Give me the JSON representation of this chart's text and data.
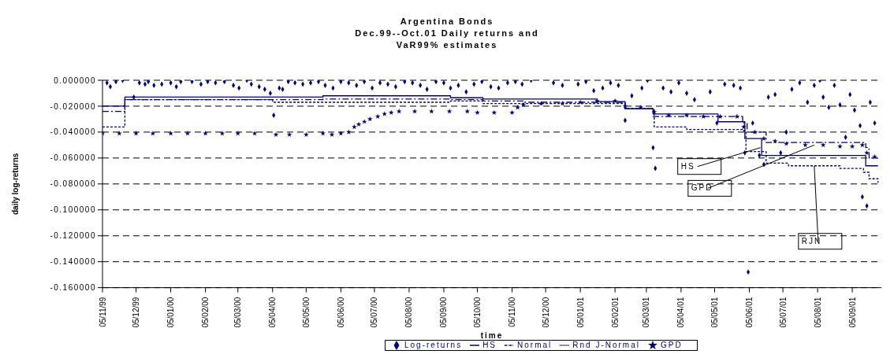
{
  "chart_data": {
    "type": "line",
    "title": "Argentina Bonds",
    "subtitle": "Dec.99--Oct.01 Daily returns and VaR99% estimates",
    "xlabel": "time",
    "ylabel": "daily log-returns",
    "xlim": [
      "1999-11-05",
      "2001-10-01"
    ],
    "xticks": [
      {
        "value": "1999-11-05",
        "label": "05/11/99"
      },
      {
        "value": "1999-12-05",
        "label": "05/12/99"
      },
      {
        "value": "2000-01-05",
        "label": "05/01/00"
      },
      {
        "value": "2000-02-05",
        "label": "05/02/00"
      },
      {
        "value": "2000-03-05",
        "label": "05/03/00"
      },
      {
        "value": "2000-04-05",
        "label": "05/04/00"
      },
      {
        "value": "2000-05-05",
        "label": "05/05/00"
      },
      {
        "value": "2000-06-05",
        "label": "05/06/00"
      },
      {
        "value": "2000-07-05",
        "label": "05/07/00"
      },
      {
        "value": "2000-08-05",
        "label": "05/08/00"
      },
      {
        "value": "2000-09-05",
        "label": "05/09/00"
      },
      {
        "value": "2000-10-05",
        "label": "05/10/00"
      },
      {
        "value": "2000-11-05",
        "label": "05/11/00"
      },
      {
        "value": "2000-12-05",
        "label": "05/12/00"
      },
      {
        "value": "2001-01-05",
        "label": "05/01/01"
      },
      {
        "value": "2001-02-05",
        "label": "05/02/01"
      },
      {
        "value": "2001-03-05",
        "label": "05/03/01"
      },
      {
        "value": "2001-04-05",
        "label": "05/04/01"
      },
      {
        "value": "2001-05-05",
        "label": "05/05/01"
      },
      {
        "value": "2001-06-05",
        "label": "05/06/01"
      },
      {
        "value": "2001-07-05",
        "label": "05/07/01"
      },
      {
        "value": "2001-08-05",
        "label": "05/08/01"
      },
      {
        "value": "2001-09-05",
        "label": "05/09/01"
      }
    ],
    "ylim": [
      -0.16,
      0
    ],
    "yticks": [
      {
        "value": 0,
        "label": "0.000000"
      },
      {
        "value": -0.02,
        "label": "-0.020000"
      },
      {
        "value": -0.04,
        "label": "-0.040000"
      },
      {
        "value": -0.06,
        "label": "-0.060000"
      },
      {
        "value": -0.08,
        "label": "-0.080000"
      },
      {
        "value": -0.1,
        "label": "-0.100000"
      },
      {
        "value": -0.12,
        "label": "-0.120000"
      },
      {
        "value": -0.14,
        "label": "-0.140000"
      },
      {
        "value": -0.16,
        "label": "-0.160000"
      }
    ],
    "grid": "y",
    "legend": "bottom",
    "series": [
      {
        "name": "Log-returns",
        "type": "scatter",
        "marker": "diamond",
        "color": "#000080",
        "x": [
          "1999-11-09",
          "1999-11-12",
          "1999-11-17",
          "1999-11-23",
          "1999-12-03",
          "1999-12-08",
          "1999-12-13",
          "1999-12-16",
          "1999-12-21",
          "1999-12-28",
          "2000-01-05",
          "2000-01-10",
          "2000-01-14",
          "2000-01-24",
          "2000-02-01",
          "2000-02-07",
          "2000-02-14",
          "2000-02-22",
          "2000-03-01",
          "2000-03-06",
          "2000-03-13",
          "2000-03-17",
          "2000-03-24",
          "2000-03-29",
          "2000-04-03",
          "2000-04-06",
          "2000-04-11",
          "2000-04-14",
          "2000-04-19",
          "2000-04-25",
          "2000-05-02",
          "2000-05-09",
          "2000-05-16",
          "2000-05-22",
          "2000-05-29",
          "2000-06-05",
          "2000-06-12",
          "2000-06-19",
          "2000-06-26",
          "2000-07-03",
          "2000-07-10",
          "2000-07-17",
          "2000-07-24",
          "2000-08-01",
          "2000-08-08",
          "2000-08-15",
          "2000-08-21",
          "2000-08-29",
          "2000-09-05",
          "2000-09-11",
          "2000-09-18",
          "2000-09-25",
          "2000-10-02",
          "2000-10-09",
          "2000-10-17",
          "2000-10-24",
          "2000-11-01",
          "2000-11-08",
          "2000-11-14",
          "2000-11-22",
          "2000-12-12",
          "2000-12-20",
          "2001-01-03",
          "2001-01-10",
          "2001-01-17",
          "2001-01-25",
          "2001-02-01",
          "2001-02-08",
          "2001-02-14",
          "2001-02-20",
          "2001-03-01",
          "2001-03-06",
          "2001-03-11",
          "2001-03-13",
          "2001-03-20",
          "2001-03-27",
          "2001-04-03",
          "2001-04-10",
          "2001-04-17",
          "2001-05-01",
          "2001-05-07",
          "2001-05-14",
          "2001-05-22",
          "2001-05-28",
          "2001-06-01",
          "2001-06-04",
          "2001-06-08",
          "2001-06-14",
          "2001-06-18",
          "2001-06-22",
          "2001-06-28",
          "2001-07-03",
          "2001-07-08",
          "2001-07-13",
          "2001-07-20",
          "2001-07-27",
          "2001-08-02",
          "2001-08-07",
          "2001-08-10",
          "2001-08-15",
          "2001-08-20",
          "2001-08-25",
          "2001-08-30",
          "2001-09-03",
          "2001-09-07",
          "2001-09-12",
          "2001-09-14",
          "2001-09-18",
          "2001-09-21",
          "2001-09-25"
        ],
        "values": [
          -0.002,
          -0.005,
          -0.001,
          0,
          -0.013,
          -0.002,
          -0.003,
          -0.001,
          -0.004,
          -0.003,
          -0.002,
          -0.005,
          -0.001,
          -0.001,
          -0.003,
          -0.001,
          -0.002,
          -0.001,
          -0.004,
          -0.006,
          0,
          -0.003,
          -0.005,
          -0.007,
          -0.01,
          -0.027,
          -0.006,
          -0.007,
          -0.001,
          -0.002,
          -0.003,
          -0.002,
          -0.001,
          -0.004,
          -0.006,
          -0.001,
          -0.002,
          -0.004,
          -0.001,
          -0.006,
          -0.002,
          -0.003,
          -0.005,
          -0.001,
          -0.002,
          -0.004,
          -0.007,
          -0.001,
          -0.002,
          -0.006,
          -0.004,
          -0.009,
          -0.003,
          -0.001,
          -0.005,
          -0.006,
          -0.002,
          -0.001,
          -0.003,
          0,
          -0.002,
          -0.004,
          -0.003,
          -0.001,
          -0.008,
          -0.006,
          -0.002,
          -0.004,
          -0.031,
          -0.012,
          -0.006,
          0,
          -0.052,
          -0.068,
          -0.006,
          -0.009,
          -0.002,
          -0.01,
          -0.015,
          -0.009,
          -0.033,
          -0.003,
          -0.004,
          -0.006,
          -0.056,
          -0.148,
          -0.033,
          -0.058,
          -0.065,
          -0.013,
          -0.011,
          -0.056,
          -0.04,
          -0.007,
          -0.002,
          -0.017,
          -0.004,
          0,
          -0.013,
          -0.021,
          -0.004,
          -0.019,
          -0.044,
          -0.011,
          -0.023,
          -0.035,
          -0.09,
          -0.097,
          -0.017,
          -0.033
        ]
      },
      {
        "name": "HS",
        "type": "step",
        "line_style": "solid",
        "color": "#000080",
        "x": [
          "1999-11-05",
          "1999-11-25",
          "2000-05-20",
          "2000-09-11",
          "2000-10-10",
          "2001-01-20",
          "2001-02-14",
          "2001-03-11",
          "2001-05-08",
          "2001-06-01",
          "2001-06-16",
          "2001-09-17",
          "2001-09-28"
        ],
        "values": [
          -0.02,
          -0.013,
          -0.012,
          -0.0135,
          -0.0145,
          -0.0165,
          -0.022,
          -0.026,
          -0.032,
          -0.045,
          -0.058,
          -0.066,
          -0.066
        ]
      },
      {
        "name": "Normal",
        "type": "step",
        "line_style": "dashed",
        "color": "#000080",
        "x": [
          "1999-11-05",
          "1999-11-25",
          "2000-05-20",
          "2000-09-11",
          "2000-10-10",
          "2000-11-15",
          "2001-02-14",
          "2001-03-11",
          "2001-05-30",
          "2001-06-03",
          "2001-06-20",
          "2001-09-17",
          "2001-09-20",
          "2001-09-28"
        ],
        "values": [
          -0.024,
          -0.015,
          -0.0145,
          -0.015,
          -0.016,
          -0.017,
          -0.022,
          -0.028,
          -0.033,
          -0.04,
          -0.048,
          -0.052,
          -0.06,
          -0.06
        ]
      },
      {
        "name": "Rnd J-Normal",
        "type": "step",
        "line_style": "dotted",
        "color": "#000080",
        "x": [
          "1999-11-05",
          "1999-11-25",
          "2000-04-05",
          "2000-09-11",
          "2000-10-10",
          "2001-02-14",
          "2001-03-12",
          "2001-04-10",
          "2001-05-30",
          "2001-06-02",
          "2001-06-20",
          "2001-07-10",
          "2001-08-25",
          "2001-09-15",
          "2001-09-20",
          "2001-09-28"
        ],
        "values": [
          -0.036,
          -0.015,
          -0.017,
          -0.016,
          -0.018,
          -0.022,
          -0.036,
          -0.038,
          -0.039,
          -0.055,
          -0.064,
          -0.066,
          -0.068,
          -0.071,
          -0.076,
          -0.079
        ]
      },
      {
        "name": "GPD",
        "type": "scatter",
        "marker": "star",
        "color": "#000080",
        "x": [
          "1999-11-05",
          "1999-11-20",
          "1999-12-05",
          "1999-12-20",
          "2000-01-05",
          "2000-01-20",
          "2000-02-05",
          "2000-02-20",
          "2000-03-05",
          "2000-03-20",
          "2000-04-08",
          "2000-04-20",
          "2000-05-05",
          "2000-05-20",
          "2000-05-28",
          "2000-06-05",
          "2000-06-12",
          "2000-06-17",
          "2000-06-21",
          "2000-06-26",
          "2000-07-01",
          "2000-07-08",
          "2000-07-14",
          "2000-07-20",
          "2000-07-27",
          "2000-08-10",
          "2000-08-25",
          "2000-09-10",
          "2000-09-26",
          "2000-10-05",
          "2000-10-20",
          "2000-11-05",
          "2000-11-10",
          "2000-11-15",
          "2000-12-01",
          "2000-12-20",
          "2001-01-05",
          "2001-01-20",
          "2001-02-05",
          "2001-02-14",
          "2001-02-28",
          "2001-03-12",
          "2001-03-25",
          "2001-04-10",
          "2001-04-25",
          "2001-05-10",
          "2001-05-25",
          "2001-05-31",
          "2001-06-10",
          "2001-06-18",
          "2001-06-28",
          "2001-07-08",
          "2001-07-25",
          "2001-08-10",
          "2001-08-25",
          "2001-09-05",
          "2001-09-14",
          "2001-09-18",
          "2001-09-25"
        ],
        "values": [
          -0.041,
          -0.041,
          -0.041,
          -0.041,
          -0.041,
          -0.041,
          -0.041,
          -0.041,
          -0.041,
          -0.041,
          -0.042,
          -0.042,
          -0.042,
          -0.041,
          -0.042,
          -0.041,
          -0.04,
          -0.036,
          -0.034,
          -0.032,
          -0.03,
          -0.028,
          -0.026,
          -0.025,
          -0.024,
          -0.024,
          -0.024,
          -0.024,
          -0.024,
          -0.025,
          -0.025,
          -0.025,
          -0.021,
          -0.019,
          -0.018,
          -0.018,
          -0.017,
          -0.016,
          -0.016,
          -0.02,
          -0.021,
          -0.0245,
          -0.027,
          -0.027,
          -0.028,
          -0.028,
          -0.028,
          -0.036,
          -0.04,
          -0.045,
          -0.047,
          -0.049,
          -0.05,
          -0.05,
          -0.051,
          -0.051,
          -0.05,
          -0.056,
          -0.059
        ]
      }
    ],
    "annotations": [
      {
        "text": "HS",
        "x": "2001-06-15",
        "y": -0.052
      },
      {
        "text": "GPD",
        "x": "2001-08-02",
        "y": -0.05
      },
      {
        "text": "RJN",
        "x": "2001-08-02",
        "y": -0.066
      }
    ]
  }
}
